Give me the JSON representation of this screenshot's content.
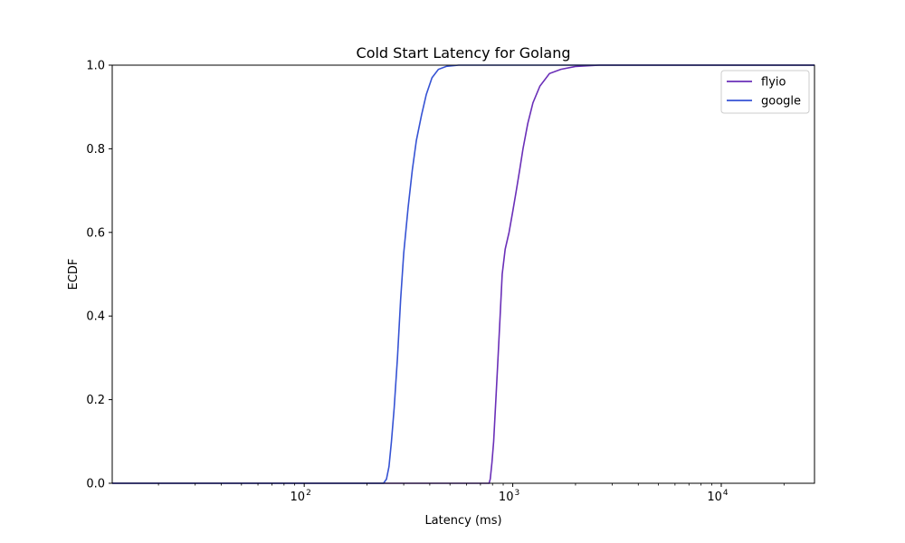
{
  "chart_data": {
    "type": "line",
    "title": "Cold Start Latency for Golang",
    "xlabel": "Latency (ms)",
    "ylabel": "ECDF",
    "xscale": "log",
    "xlim": [
      12,
      28000
    ],
    "ylim": [
      0,
      1
    ],
    "x_ticks": [
      {
        "value": 100,
        "base": "10",
        "exp": "2"
      },
      {
        "value": 1000,
        "base": "10",
        "exp": "3"
      },
      {
        "value": 10000,
        "base": "10",
        "exp": "4"
      }
    ],
    "y_ticks": [
      {
        "value": 0.0,
        "label": "0.0"
      },
      {
        "value": 0.2,
        "label": "0.2"
      },
      {
        "value": 0.4,
        "label": "0.4"
      },
      {
        "value": 0.6,
        "label": "0.6"
      },
      {
        "value": 0.8,
        "label": "0.8"
      },
      {
        "value": 1.0,
        "label": "1.0"
      }
    ],
    "legend_position": "top-right",
    "grid": false,
    "series": [
      {
        "name": "flyio",
        "color": "#6a2fb8",
        "points": [
          [
            12,
            0
          ],
          [
            770,
            0
          ],
          [
            780,
            0.01
          ],
          [
            795,
            0.05
          ],
          [
            810,
            0.1
          ],
          [
            830,
            0.2
          ],
          [
            850,
            0.3
          ],
          [
            870,
            0.4
          ],
          [
            890,
            0.5
          ],
          [
            920,
            0.56
          ],
          [
            960,
            0.6
          ],
          [
            1000,
            0.65
          ],
          [
            1040,
            0.7
          ],
          [
            1080,
            0.75
          ],
          [
            1120,
            0.8
          ],
          [
            1180,
            0.86
          ],
          [
            1250,
            0.91
          ],
          [
            1350,
            0.95
          ],
          [
            1500,
            0.98
          ],
          [
            1700,
            0.99
          ],
          [
            2000,
            0.997
          ],
          [
            2600,
            1.0
          ],
          [
            28000,
            1.0
          ]
        ]
      },
      {
        "name": "google",
        "color": "#3653d4",
        "points": [
          [
            12,
            0
          ],
          [
            240,
            0
          ],
          [
            248,
            0.01
          ],
          [
            255,
            0.04
          ],
          [
            262,
            0.1
          ],
          [
            270,
            0.18
          ],
          [
            280,
            0.3
          ],
          [
            290,
            0.44
          ],
          [
            300,
            0.55
          ],
          [
            315,
            0.66
          ],
          [
            330,
            0.75
          ],
          [
            345,
            0.82
          ],
          [
            365,
            0.88
          ],
          [
            385,
            0.93
          ],
          [
            410,
            0.97
          ],
          [
            440,
            0.99
          ],
          [
            480,
            0.997
          ],
          [
            550,
            1.0
          ],
          [
            28000,
            1.0
          ]
        ]
      }
    ]
  }
}
